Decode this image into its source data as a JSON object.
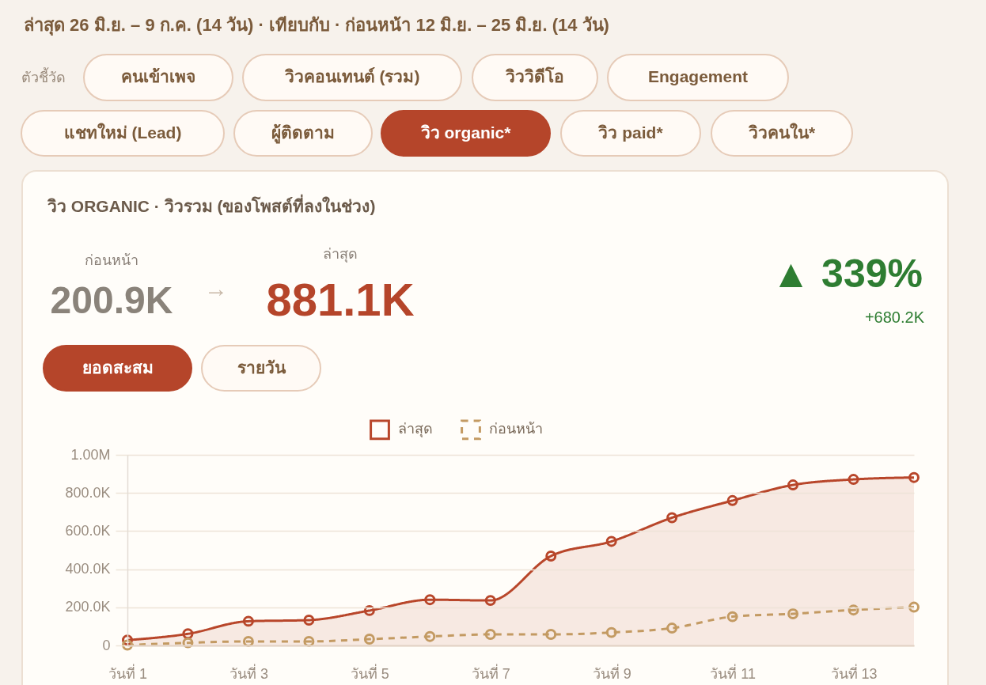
{
  "chart_data": {
    "type": "line",
    "title": "วิว ORGANIC · วิวรวม (ของโพสต์ที่ลงในช่วง)",
    "annotations": [
      "ล่าสุด 26 มิ.ย. – 9 ก.ค. (14 วัน) · เทียบกับ · ก่อนหน้า 12 มิ.ย. – 25 มิ.ย. (14 วัน)",
      "ตัวชี้วัด",
      "คนเข้าเพจ",
      "วิวคอนเทนต์ (รวม)",
      "วิววิดีโอ",
      "Engagement",
      "แชทใหม่ (Lead)",
      "ผู้ติดตาม",
      "วิว organic*",
      "วิว paid*",
      "วิวคนใน*",
      "ก่อนหน้า",
      "200.9K",
      "→",
      "ล่าสุด",
      "881.1K",
      "▲ 339%",
      "+680.2K",
      "ยอดสะสม",
      "รายวัน"
    ],
    "categories": [
      "วันที่ 1",
      null,
      "วันที่ 3",
      null,
      "วันที่ 5",
      null,
      "วันที่ 7",
      null,
      "วันที่ 9",
      null,
      "วันที่ 11",
      null,
      "วันที่ 13",
      null
    ],
    "series": [
      {
        "name": "ล่าสุด",
        "color": "#b8462a",
        "type": "area",
        "values": [
          28000,
          61000,
          127000,
          133000,
          183000,
          240000,
          236000,
          469000,
          546000,
          670000,
          760000,
          842000,
          871000,
          881100
        ]
      },
      {
        "name": "ก่อนหน้า",
        "color": "#c39a62",
        "line_style": "dashed",
        "values": [
          2000,
          14000,
          21000,
          21000,
          33000,
          47000,
          58000,
          58000,
          68000,
          91000,
          151000,
          166000,
          186000,
          200900
        ]
      }
    ],
    "ylim": [
      0,
      1000000
    ],
    "yticks": [
      0,
      {
        "value": 200000,
        "label": "200.0K"
      },
      {
        "value": 400000,
        "label": "400.0K"
      },
      {
        "value": 600000,
        "label": "600.0K"
      },
      {
        "value": 800000,
        "label": "800.0K"
      },
      {
        "value": 1000000,
        "label": "1.00M"
      }
    ],
    "grid": "y",
    "legend": "top",
    "marker": "circle",
    "line_style": "solid"
  }
}
